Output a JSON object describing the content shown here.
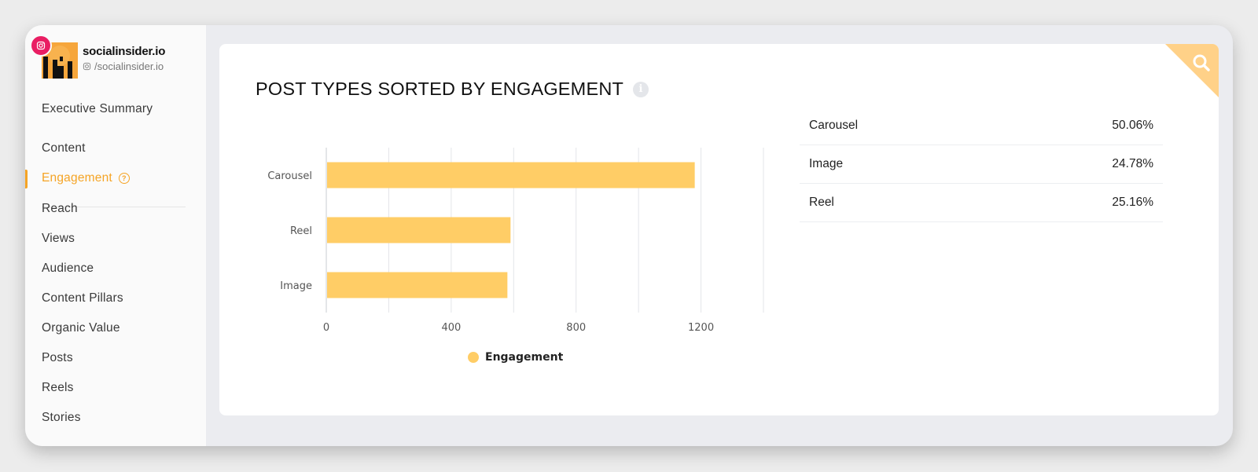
{
  "profile": {
    "name": "socialinsider.io",
    "handle": "/socialinsider.io",
    "network_icon": "instagram-icon"
  },
  "nav": {
    "items": [
      {
        "label": "Executive Summary"
      },
      {
        "label": "Content"
      },
      {
        "label": "Engagement",
        "active": true
      },
      {
        "label": "Reach"
      },
      {
        "label": "Views"
      },
      {
        "label": "Audience"
      },
      {
        "label": "Content Pillars"
      },
      {
        "label": "Organic Value"
      },
      {
        "label": "Posts"
      },
      {
        "label": "Reels"
      },
      {
        "label": "Stories"
      }
    ]
  },
  "card": {
    "title": "POST TYPES SORTED BY ENGAGEMENT",
    "info_icon": "i"
  },
  "colors": {
    "accent": "#f5a425",
    "bar": "#ffcd66",
    "instagram": "#e91e63",
    "corner": "#ffd188"
  },
  "chart_data": {
    "type": "bar",
    "orientation": "horizontal",
    "categories": [
      "Carousel",
      "Reel",
      "Image"
    ],
    "series": [
      {
        "name": "Engagement",
        "values": [
          1180,
          590,
          580
        ]
      }
    ],
    "xlim": [
      0,
      1400
    ],
    "x_ticks": [
      "0",
      "400",
      "800",
      "1200"
    ],
    "x_tick_values": [
      0,
      400,
      800,
      1200
    ],
    "grid": true,
    "legend": "bottom"
  },
  "table": {
    "rows": [
      {
        "label": "Carousel",
        "value": "50.06%"
      },
      {
        "label": "Image",
        "value": "24.78%"
      },
      {
        "label": "Reel",
        "value": "25.16%"
      }
    ]
  }
}
